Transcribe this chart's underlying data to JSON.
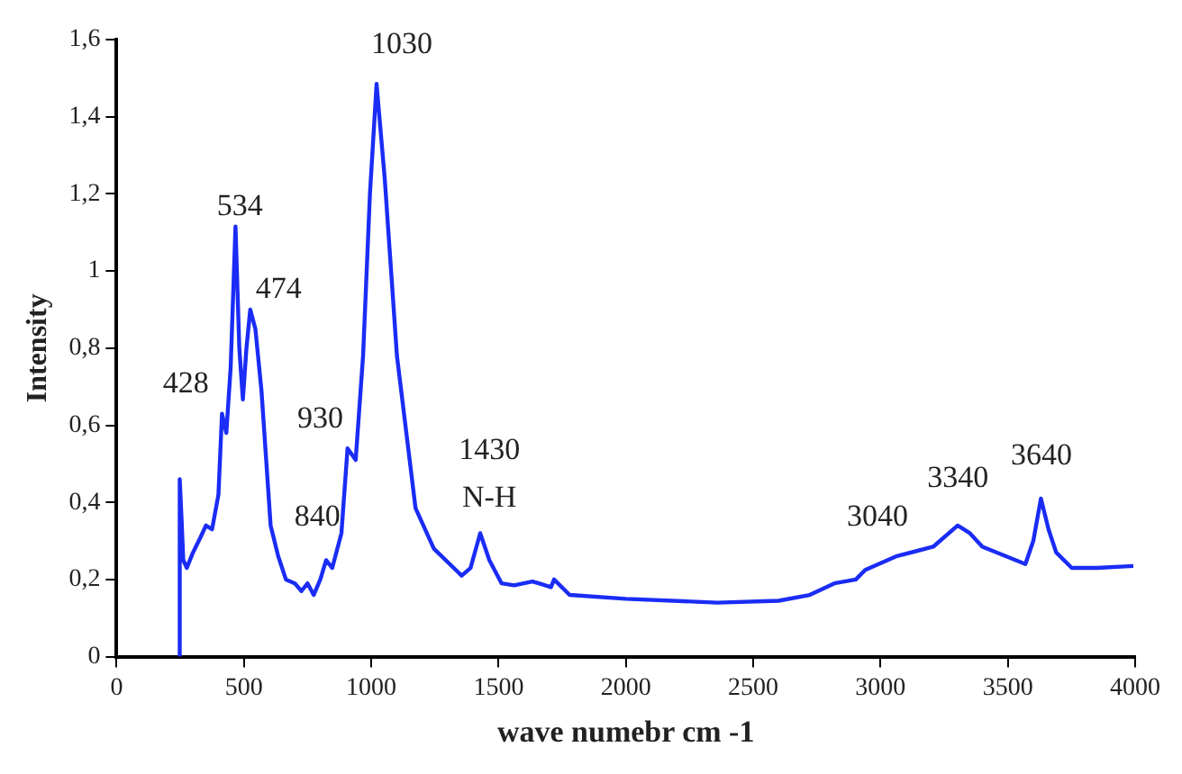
{
  "chart_data": {
    "type": "line",
    "xlabel": "wave numebr cm -1",
    "ylabel": "Intensity",
    "grid": false,
    "legend": false,
    "marker": "none",
    "line_style": "solid",
    "xlim": [
      0,
      4000
    ],
    "xticks": [
      0,
      500,
      1000,
      1500,
      2000,
      2500,
      3000,
      3500,
      4000
    ],
    "ylim": [
      0,
      1.6
    ],
    "yticks": [
      0,
      {
        "value": 0.2,
        "label": "0,2"
      },
      {
        "value": 0.4,
        "label": "0,4"
      },
      {
        "value": 0.6,
        "label": "0,6"
      },
      {
        "value": 0.8,
        "label": "0,8"
      },
      1,
      {
        "value": 1.2,
        "label": "1,2"
      },
      {
        "value": 1.4,
        "label": "1,4"
      },
      {
        "value": 1.6,
        "label": "1,6"
      }
    ],
    "series": [
      {
        "color": "#1a2cf5",
        "x": [
          247,
          248,
          255,
          262,
          276,
          300,
          330,
          351,
          375,
          400,
          414,
          431,
          448,
          467,
          482,
          496,
          510,
          525,
          545,
          569,
          605,
          635,
          665,
          700,
          726,
          750,
          774,
          800,
          823,
          847,
          883,
          907,
          939,
          968,
          995,
          1021,
          1053,
          1101,
          1174,
          1246,
          1355,
          1390,
          1428,
          1464,
          1512,
          1561,
          1633,
          1658,
          1706,
          1718,
          1779,
          2000,
          2359,
          2600,
          2722,
          2819,
          2903,
          2940,
          3061,
          3207,
          3303,
          3351,
          3400,
          3569,
          3600,
          3630,
          3660,
          3690,
          3751,
          3850,
          3993
        ],
        "values": [
          0,
          0.46,
          0.36,
          0.25,
          0.23,
          0.27,
          0.31,
          0.34,
          0.33,
          0.42,
          0.63,
          0.58,
          0.75,
          1.115,
          0.8,
          0.667,
          0.8,
          0.9,
          0.85,
          0.69,
          0.34,
          0.26,
          0.2,
          0.19,
          0.17,
          0.19,
          0.16,
          0.2,
          0.25,
          0.23,
          0.32,
          0.54,
          0.51,
          0.78,
          1.2,
          1.485,
          1.24,
          0.78,
          0.385,
          0.28,
          0.21,
          0.23,
          0.32,
          0.25,
          0.19,
          0.185,
          0.195,
          0.19,
          0.18,
          0.2,
          0.16,
          0.15,
          0.14,
          0.145,
          0.16,
          0.19,
          0.2,
          0.225,
          0.26,
          0.285,
          0.34,
          0.32,
          0.285,
          0.24,
          0.3,
          0.41,
          0.33,
          0.27,
          0.23,
          0.23,
          0.235
        ]
      }
    ],
    "annotations": [
      "428",
      "534",
      "474",
      "930",
      "840",
      "1030",
      "1430",
      "N-H",
      "3040",
      "3340",
      "3640"
    ]
  }
}
